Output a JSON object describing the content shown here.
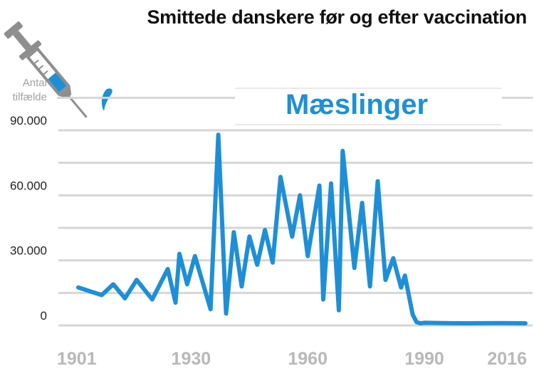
{
  "colors": {
    "series": "#1e8fd6",
    "grid": "#d6d6d6",
    "title": "#111111",
    "tick_x": "#b8b8b8"
  },
  "icons": {
    "corner": "syringe-icon"
  },
  "chart_data": {
    "type": "line",
    "title": "Smittede danskere før og efter vaccination",
    "subtitle": "Mæslinger",
    "ylabel": "Antal tilfælde",
    "ylabel_lines": [
      "Antal",
      "tilfælde"
    ],
    "xlabel": "",
    "xlim": [
      1901,
      2016
    ],
    "ylim": [
      0,
      100000
    ],
    "yticks": [
      0,
      30000,
      60000,
      90000
    ],
    "ytick_labels": [
      "0",
      "30.000",
      "60.000",
      "90.000"
    ],
    "xticks": [
      1901,
      1930,
      1960,
      1990,
      2016
    ],
    "xtick_labels": [
      "1901",
      "1930",
      "1960",
      "1990",
      "2016"
    ],
    "grid": true,
    "legend": "none",
    "series": [
      {
        "x": [
          1901,
          1907,
          1910,
          1913,
          1916,
          1920,
          1924,
          1926,
          1927,
          1929,
          1931,
          1935,
          1937,
          1939,
          1941,
          1943,
          1945,
          1947,
          1949,
          1951,
          1953,
          1956,
          1958,
          1960,
          1963,
          1964,
          1966,
          1968,
          1969,
          1972,
          1974,
          1976,
          1978,
          1980,
          1982,
          1984,
          1985,
          1987,
          1988,
          1989,
          1990,
          1995,
          2000,
          2010,
          2016
        ],
        "y": [
          17500,
          14000,
          19000,
          12500,
          21000,
          12000,
          26000,
          10500,
          33000,
          19000,
          32000,
          7500,
          88000,
          5500,
          43000,
          18000,
          41000,
          28000,
          44000,
          29000,
          68500,
          41000,
          60000,
          32000,
          64500,
          12000,
          65500,
          7000,
          80500,
          26500,
          56500,
          18000,
          66500,
          21000,
          31000,
          17500,
          23000,
          5000,
          1500,
          1000,
          1200,
          1100,
          1000,
          1100,
          1000
        ]
      }
    ]
  }
}
